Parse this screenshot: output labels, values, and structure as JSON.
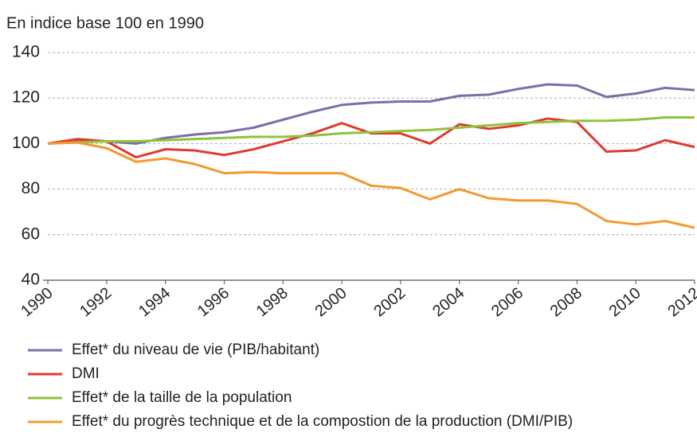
{
  "chart_data": {
    "type": "line",
    "title": "En indice base 100 en 1990",
    "x": [
      1990,
      1991,
      1992,
      1993,
      1994,
      1995,
      1996,
      1997,
      1998,
      1999,
      2000,
      2001,
      2002,
      2003,
      2004,
      2005,
      2006,
      2007,
      2008,
      2009,
      2010,
      2011,
      2012
    ],
    "xlim": [
      1990,
      2012
    ],
    "xticks": [
      1990,
      1992,
      1994,
      1996,
      1998,
      2000,
      2002,
      2004,
      2006,
      2008,
      2010,
      2012
    ],
    "ylim": [
      40,
      140
    ],
    "yticks": [
      40,
      60,
      80,
      100,
      120,
      140
    ],
    "grid": true,
    "series": [
      {
        "name": "Effet* du niveau de vie (PIB/habitant)",
        "color": "#7b6fa8",
        "values": [
          100,
          101.5,
          101,
          100,
          102.5,
          104,
          105,
          107,
          110.5,
          114,
          117,
          118,
          118.5,
          118.5,
          121,
          121.5,
          124,
          126,
          125.5,
          120.5,
          122,
          124.5,
          123.5
        ]
      },
      {
        "name": "DMI",
        "color": "#e03a2e",
        "values": [
          100,
          102,
          101,
          94,
          97.5,
          97,
          95,
          97.5,
          101,
          104.5,
          109,
          104.5,
          104.5,
          100,
          108.5,
          106.5,
          108,
          111,
          109.5,
          96.5,
          97,
          101.5,
          98.5
        ]
      },
      {
        "name": "Effet* de la taille de la population",
        "color": "#8cc43c",
        "values": [
          100,
          100.5,
          101,
          101,
          101.5,
          102,
          102.5,
          103,
          103,
          103.5,
          104.5,
          105,
          105.5,
          106,
          107,
          108,
          109,
          109.5,
          110,
          110,
          110.5,
          111.5,
          111.5
        ]
      },
      {
        "name": "Effet* du progrès technique et de la compostion de la production (DMI/PIB)",
        "color": "#f39a2e",
        "values": [
          100,
          100.5,
          98,
          92,
          93.5,
          91,
          87,
          87.5,
          87,
          87,
          87,
          81.5,
          80.5,
          75.5,
          80,
          76,
          75,
          75,
          73.5,
          66,
          64.5,
          66,
          63
        ]
      }
    ]
  }
}
